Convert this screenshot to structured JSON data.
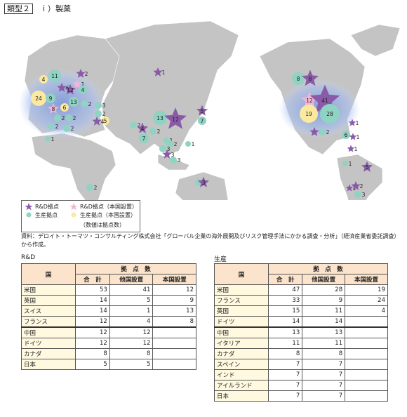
{
  "header": {
    "type_label": "類型２",
    "title": "ｉ）製薬"
  },
  "map": {
    "markers": [
      "4",
      "11",
      "24",
      "9",
      "6",
      "12",
      "1",
      "4",
      "8",
      "6",
      "13",
      "2",
      "2",
      "2",
      "2",
      "3",
      "2",
      "5",
      "4",
      "2",
      "2",
      "1",
      "2",
      "1",
      "13",
      "12",
      "5",
      "7",
      "2",
      "4",
      "2",
      "7",
      "1",
      "2",
      "3",
      "3",
      "3",
      "1",
      "2",
      "3",
      "8",
      "8",
      "12",
      "41",
      "19",
      "28",
      "6",
      "2",
      "1",
      "6",
      "1",
      "1",
      "1",
      "5",
      "1",
      "2",
      "3"
    ]
  },
  "legend": {
    "rd": "R&D拠点",
    "rd_home": "R&D拠点（本国設置）",
    "prod": "生産拠点",
    "prod_home": "生産拠点（本国設置）",
    "note": "（数値は拠点数）"
  },
  "source": "資料：デロイト・トーマツ・コンサルティング株式会社「グローバル企業の海外展開及びリスク管理手法にかかる調査・分析」（経済産業省委託調査）から作成。",
  "tables": [
    {
      "caption": "R&D",
      "headers": {
        "country": "国",
        "count": "拠　点　数",
        "total": "合　計",
        "foreign": "他国設置",
        "home": "本国設置"
      },
      "rows": [
        [
          "米国",
          53,
          41,
          12
        ],
        [
          "英国",
          14,
          5,
          9
        ],
        [
          "スイス",
          14,
          1,
          13
        ],
        [
          "フランス",
          12,
          4,
          8
        ],
        [
          "中国",
          12,
          12,
          null
        ],
        [
          "ドイツ",
          12,
          12,
          null
        ],
        [
          "カナダ",
          8,
          8,
          null
        ],
        [
          "日本",
          5,
          5,
          null
        ]
      ]
    },
    {
      "caption": "生産",
      "headers": {
        "country": "国",
        "count": "拠　点　数",
        "total": "合　計",
        "foreign": "他国設置",
        "home": "本国設置"
      },
      "rows": [
        [
          "米国",
          47,
          28,
          19
        ],
        [
          "フランス",
          33,
          9,
          24
        ],
        [
          "英国",
          15,
          11,
          4
        ],
        [
          "ドイツ",
          14,
          14,
          null
        ],
        [
          "中国",
          13,
          13,
          null
        ],
        [
          "イタリア",
          11,
          11,
          null
        ],
        [
          "カナダ",
          8,
          8,
          null
        ],
        [
          "スペイン",
          7,
          7,
          null
        ],
        [
          "インド",
          7,
          7,
          null
        ],
        [
          "アイルランド",
          7,
          7,
          null
        ],
        [
          "日本",
          7,
          7,
          null
        ]
      ]
    }
  ]
}
